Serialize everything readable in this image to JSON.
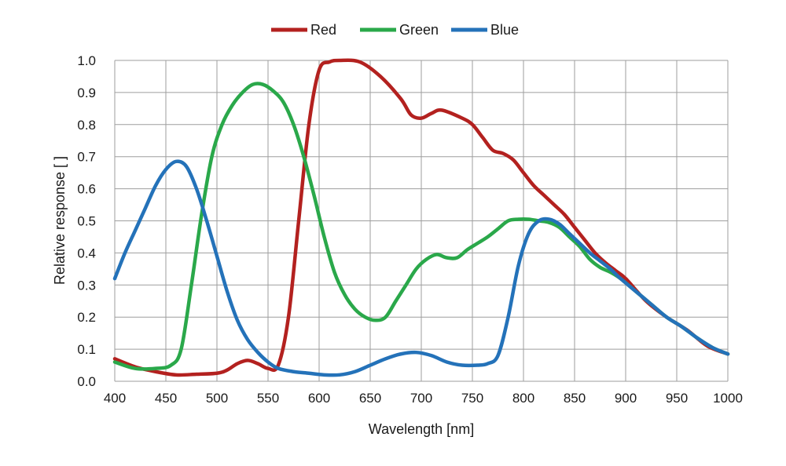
{
  "chart_data": {
    "type": "line",
    "title": "",
    "xlabel": "Wavelength [nm]",
    "ylabel": "Relative response [ ]",
    "xlim": [
      400,
      1000
    ],
    "ylim": [
      0,
      1
    ],
    "x_ticks": [
      "400",
      "450",
      "500",
      "550",
      "600",
      "650",
      "700",
      "750",
      "800",
      "850",
      "900",
      "950",
      "1000"
    ],
    "y_ticks": [
      "0.0",
      "0.1",
      "0.2",
      "0.3",
      "0.4",
      "0.5",
      "0.6",
      "0.7",
      "0.8",
      "0.9",
      "1.0"
    ],
    "grid": true,
    "legend_position": "top-center",
    "series": [
      {
        "name": "Red",
        "color": "#b3211f",
        "points": [
          [
            400,
            0.07
          ],
          [
            420,
            0.045
          ],
          [
            440,
            0.03
          ],
          [
            460,
            0.02
          ],
          [
            480,
            0.022
          ],
          [
            500,
            0.025
          ],
          [
            510,
            0.035
          ],
          [
            520,
            0.055
          ],
          [
            530,
            0.065
          ],
          [
            540,
            0.055
          ],
          [
            550,
            0.04
          ],
          [
            560,
            0.05
          ],
          [
            570,
            0.2
          ],
          [
            580,
            0.5
          ],
          [
            590,
            0.8
          ],
          [
            600,
            0.97
          ],
          [
            610,
            0.995
          ],
          [
            620,
            1.0
          ],
          [
            640,
            0.995
          ],
          [
            660,
            0.95
          ],
          [
            680,
            0.88
          ],
          [
            690,
            0.83
          ],
          [
            700,
            0.82
          ],
          [
            710,
            0.835
          ],
          [
            720,
            0.845
          ],
          [
            740,
            0.82
          ],
          [
            750,
            0.8
          ],
          [
            760,
            0.76
          ],
          [
            770,
            0.72
          ],
          [
            780,
            0.71
          ],
          [
            790,
            0.69
          ],
          [
            800,
            0.65
          ],
          [
            810,
            0.61
          ],
          [
            820,
            0.58
          ],
          [
            830,
            0.55
          ],
          [
            840,
            0.52
          ],
          [
            850,
            0.48
          ],
          [
            860,
            0.44
          ],
          [
            870,
            0.4
          ],
          [
            880,
            0.37
          ],
          [
            890,
            0.345
          ],
          [
            900,
            0.32
          ],
          [
            920,
            0.25
          ],
          [
            940,
            0.2
          ],
          [
            960,
            0.16
          ],
          [
            980,
            0.11
          ],
          [
            1000,
            0.085
          ]
        ]
      },
      {
        "name": "Green",
        "color": "#2aa84a",
        "points": [
          [
            400,
            0.06
          ],
          [
            420,
            0.04
          ],
          [
            440,
            0.04
          ],
          [
            455,
            0.05
          ],
          [
            465,
            0.1
          ],
          [
            475,
            0.3
          ],
          [
            485,
            0.52
          ],
          [
            495,
            0.7
          ],
          [
            505,
            0.8
          ],
          [
            515,
            0.86
          ],
          [
            525,
            0.9
          ],
          [
            535,
            0.925
          ],
          [
            545,
            0.925
          ],
          [
            555,
            0.905
          ],
          [
            565,
            0.87
          ],
          [
            575,
            0.8
          ],
          [
            585,
            0.7
          ],
          [
            595,
            0.58
          ],
          [
            605,
            0.45
          ],
          [
            615,
            0.34
          ],
          [
            625,
            0.27
          ],
          [
            635,
            0.225
          ],
          [
            645,
            0.2
          ],
          [
            655,
            0.19
          ],
          [
            665,
            0.2
          ],
          [
            675,
            0.25
          ],
          [
            685,
            0.3
          ],
          [
            695,
            0.35
          ],
          [
            705,
            0.38
          ],
          [
            715,
            0.395
          ],
          [
            725,
            0.385
          ],
          [
            735,
            0.385
          ],
          [
            745,
            0.41
          ],
          [
            755,
            0.43
          ],
          [
            765,
            0.45
          ],
          [
            775,
            0.475
          ],
          [
            785,
            0.5
          ],
          [
            795,
            0.505
          ],
          [
            805,
            0.505
          ],
          [
            815,
            0.5
          ],
          [
            825,
            0.495
          ],
          [
            835,
            0.48
          ],
          [
            845,
            0.45
          ],
          [
            855,
            0.42
          ],
          [
            865,
            0.38
          ],
          [
            875,
            0.355
          ],
          [
            885,
            0.34
          ],
          [
            895,
            0.32
          ],
          [
            910,
            0.28
          ],
          [
            925,
            0.24
          ],
          [
            940,
            0.2
          ],
          [
            955,
            0.17
          ],
          [
            970,
            0.135
          ],
          [
            985,
            0.105
          ],
          [
            1000,
            0.085
          ]
        ]
      },
      {
        "name": "Blue",
        "color": "#2472b9",
        "points": [
          [
            400,
            0.32
          ],
          [
            410,
            0.4
          ],
          [
            420,
            0.47
          ],
          [
            430,
            0.54
          ],
          [
            440,
            0.61
          ],
          [
            450,
            0.66
          ],
          [
            460,
            0.685
          ],
          [
            470,
            0.67
          ],
          [
            480,
            0.6
          ],
          [
            490,
            0.5
          ],
          [
            500,
            0.39
          ],
          [
            510,
            0.28
          ],
          [
            520,
            0.19
          ],
          [
            530,
            0.13
          ],
          [
            540,
            0.09
          ],
          [
            550,
            0.06
          ],
          [
            560,
            0.04
          ],
          [
            575,
            0.03
          ],
          [
            590,
            0.025
          ],
          [
            605,
            0.02
          ],
          [
            620,
            0.02
          ],
          [
            635,
            0.03
          ],
          [
            650,
            0.05
          ],
          [
            665,
            0.07
          ],
          [
            680,
            0.085
          ],
          [
            695,
            0.09
          ],
          [
            710,
            0.08
          ],
          [
            725,
            0.06
          ],
          [
            740,
            0.05
          ],
          [
            755,
            0.05
          ],
          [
            765,
            0.055
          ],
          [
            775,
            0.08
          ],
          [
            785,
            0.2
          ],
          [
            795,
            0.36
          ],
          [
            805,
            0.46
          ],
          [
            815,
            0.5
          ],
          [
            825,
            0.505
          ],
          [
            835,
            0.49
          ],
          [
            845,
            0.46
          ],
          [
            855,
            0.43
          ],
          [
            865,
            0.4
          ],
          [
            875,
            0.375
          ],
          [
            885,
            0.35
          ],
          [
            895,
            0.32
          ],
          [
            910,
            0.28
          ],
          [
            925,
            0.24
          ],
          [
            940,
            0.2
          ],
          [
            955,
            0.17
          ],
          [
            970,
            0.135
          ],
          [
            985,
            0.105
          ],
          [
            1000,
            0.085
          ]
        ]
      }
    ]
  }
}
